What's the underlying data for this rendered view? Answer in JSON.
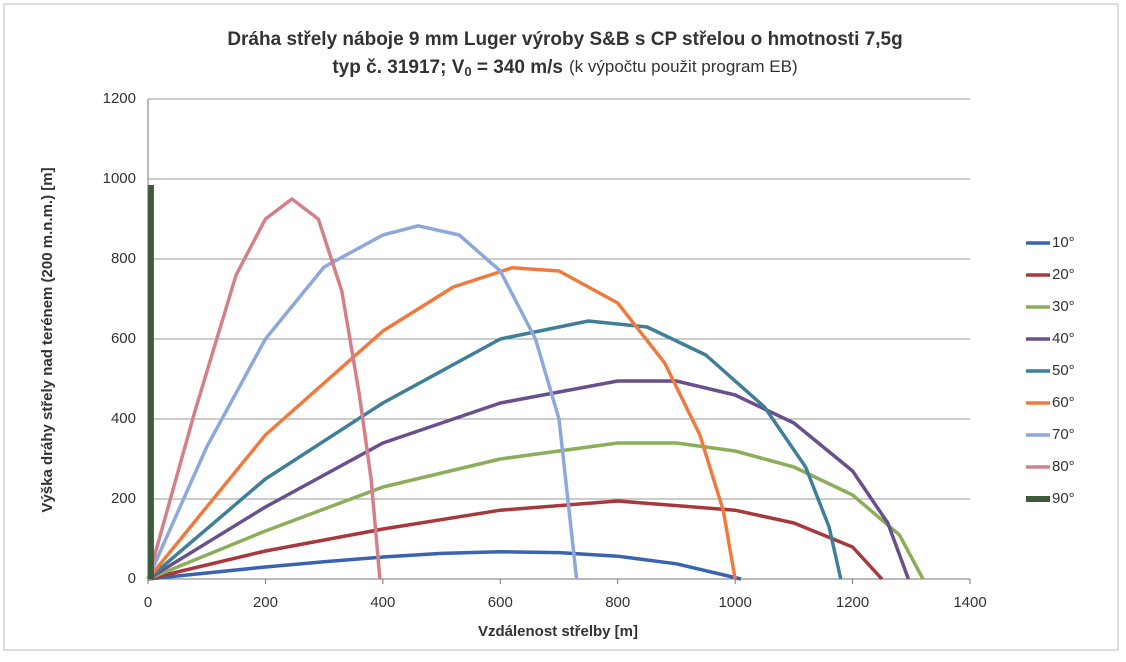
{
  "chart_data": {
    "type": "line",
    "title": "Dráha střely náboje 9 mm Luger výroby S&B s CP střelou o hmotnosti 7,5g",
    "title2": {
      "main": "typ č. 31917; V",
      "sub": "0",
      "rest": " = 340 m/s",
      "note": "(k výpočtu použit program EB)"
    },
    "xlabel": "Vzdálenost střelby [m]",
    "ylabel": "Výška dráhy střely nad terénem (200 m.n.m.) [m]",
    "xlim": [
      0,
      1400
    ],
    "xticks": [
      0,
      200,
      400,
      600,
      800,
      1000,
      1200,
      1400
    ],
    "ylim": [
      0,
      1200
    ],
    "yticks": [
      0,
      200,
      400,
      600,
      800,
      1000,
      1200
    ],
    "grid": true,
    "legend": "right",
    "series": [
      {
        "name": "10°",
        "color": "#3a64b0",
        "x": [
          0,
          100,
          200,
          300,
          400,
          500,
          600,
          700,
          800,
          900,
          1010
        ],
        "values": [
          0,
          15,
          30,
          43,
          55,
          64,
          68,
          66,
          57,
          38,
          0
        ]
      },
      {
        "name": "20°",
        "color": "#a8383b",
        "x": [
          0,
          200,
          400,
          600,
          800,
          1000,
          1100,
          1200,
          1250
        ],
        "values": [
          0,
          70,
          125,
          172,
          195,
          172,
          140,
          80,
          0
        ]
      },
      {
        "name": "30°",
        "color": "#8cae5a",
        "x": [
          0,
          200,
          400,
          600,
          800,
          900,
          1000,
          1100,
          1200,
          1280,
          1320
        ],
        "values": [
          0,
          120,
          230,
          300,
          340,
          340,
          320,
          280,
          210,
          110,
          0
        ]
      },
      {
        "name": "40°",
        "color": "#6a4f8e",
        "x": [
          0,
          200,
          400,
          600,
          800,
          900,
          1000,
          1100,
          1200,
          1260,
          1295
        ],
        "values": [
          0,
          180,
          340,
          440,
          495,
          495,
          460,
          390,
          270,
          140,
          0
        ]
      },
      {
        "name": "50°",
        "color": "#3f7f98",
        "x": [
          0,
          200,
          400,
          600,
          750,
          850,
          950,
          1050,
          1120,
          1160,
          1180
        ],
        "values": [
          0,
          250,
          440,
          600,
          645,
          630,
          560,
          430,
          280,
          130,
          0
        ]
      },
      {
        "name": "60°",
        "color": "#ef7a3e",
        "x": [
          0,
          200,
          400,
          520,
          620,
          700,
          800,
          880,
          940,
          980,
          1000
        ],
        "values": [
          0,
          360,
          620,
          730,
          778,
          770,
          690,
          540,
          360,
          170,
          0
        ]
      },
      {
        "name": "70°",
        "color": "#8ea8dc",
        "x": [
          0,
          100,
          200,
          300,
          400,
          460,
          530,
          600,
          660,
          700,
          715,
          730
        ],
        "values": [
          0,
          330,
          600,
          780,
          860,
          883,
          860,
          770,
          600,
          400,
          200,
          0
        ]
      },
      {
        "name": "80°",
        "color": "#d3808a",
        "x": [
          0,
          80,
          150,
          200,
          245,
          290,
          330,
          360,
          380,
          395
        ],
        "values": [
          0,
          420,
          760,
          900,
          950,
          900,
          720,
          460,
          250,
          0
        ]
      },
      {
        "name": "90°",
        "color": "#3d5a3a",
        "x": [
          5,
          5
        ],
        "values": [
          0,
          985
        ]
      }
    ]
  }
}
